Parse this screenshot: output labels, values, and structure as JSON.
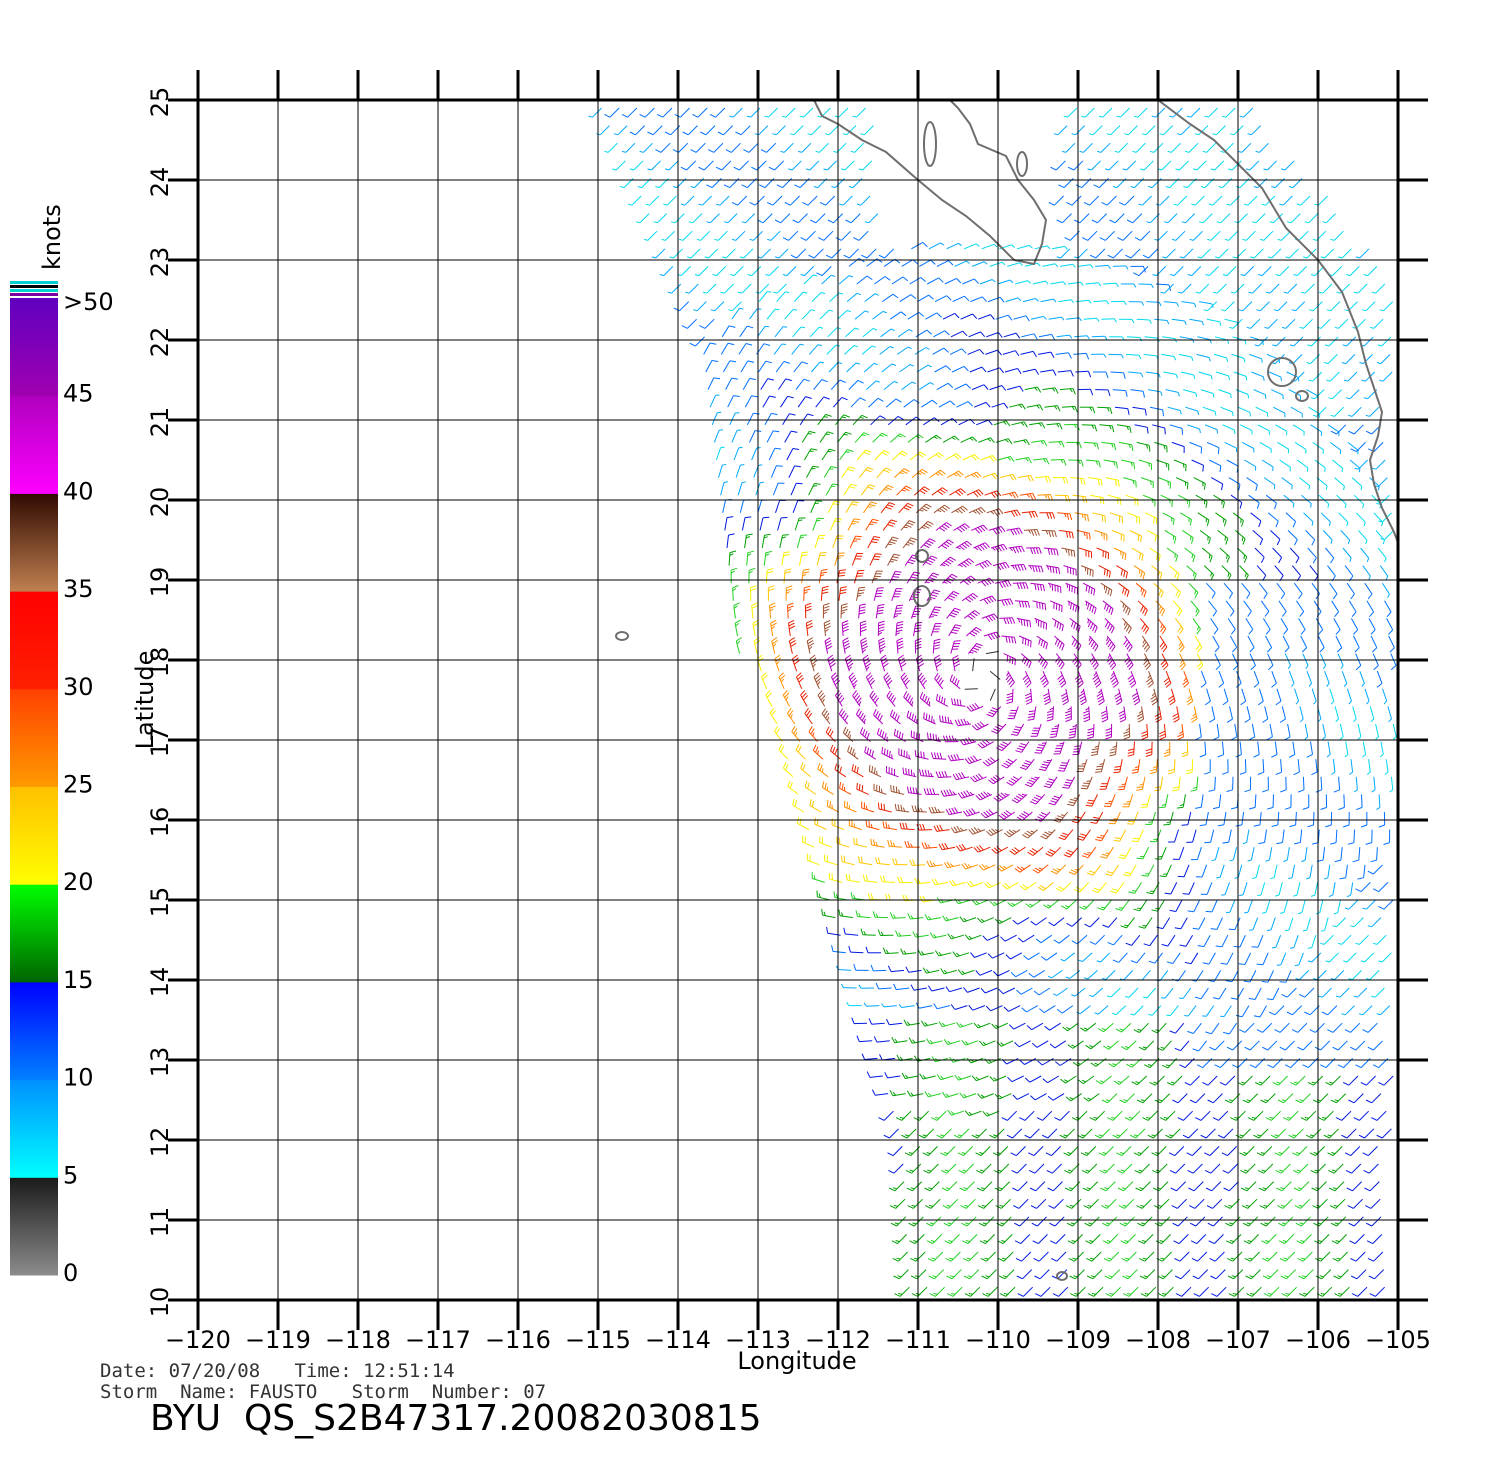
{
  "colorbar": {
    "unit": "knots",
    "labels": [
      "0",
      "5",
      "10",
      "15",
      "20",
      "25",
      "30",
      "35",
      "40",
      "45",
      ">50"
    ],
    "bands": [
      {
        "from": 0,
        "to": 5,
        "colors": [
          "#8c8c8c",
          "#1a1a1a"
        ]
      },
      {
        "from": 5,
        "to": 10,
        "colors": [
          "#00ffff",
          "#0090ff"
        ]
      },
      {
        "from": 10,
        "to": 15,
        "colors": [
          "#0080ff",
          "#0000ff"
        ]
      },
      {
        "from": 15,
        "to": 20,
        "colors": [
          "#006400",
          "#00ff00"
        ]
      },
      {
        "from": 20,
        "to": 25,
        "colors": [
          "#ffff00",
          "#ffc000"
        ]
      },
      {
        "from": 25,
        "to": 30,
        "colors": [
          "#ff9a00",
          "#ff4000"
        ]
      },
      {
        "from": 30,
        "to": 35,
        "colors": [
          "#ff2000",
          "#ff0000"
        ]
      },
      {
        "from": 35,
        "to": 40,
        "colors": [
          "#c08050",
          "#300a00"
        ]
      },
      {
        "from": 40,
        "to": 45,
        "colors": [
          "#ff00ff",
          "#b000c0"
        ]
      },
      {
        "from": 45,
        "to": 50,
        "colors": [
          "#a000b0",
          "#6000c0"
        ]
      }
    ]
  },
  "axes": {
    "xlabel": "Longitude",
    "ylabel": "Latitude",
    "xlim": [
      -120,
      -105
    ],
    "ylim": [
      10,
      25
    ],
    "xticks": [
      "−120",
      "−119",
      "−118",
      "−117",
      "−116",
      "−115",
      "−114",
      "−113",
      "−112",
      "−111",
      "−110",
      "−109",
      "−108",
      "−107",
      "−106",
      "−105"
    ],
    "yticks": [
      "10",
      "11",
      "12",
      "13",
      "14",
      "15",
      "16",
      "17",
      "18",
      "19",
      "20",
      "21",
      "22",
      "23",
      "24",
      "25"
    ],
    "grid": true
  },
  "storm_center": {
    "lon": -110.2,
    "lat": 17.8
  },
  "coast_color": "#6e6e6e",
  "info": {
    "date_line": "Date: 07/20/08   Time: 12:51:14",
    "storm_line": "Storm  Name: FAUSTO   Storm  Number: 07",
    "product_id": "BYU  QS_S2B47317.20082030815"
  }
}
